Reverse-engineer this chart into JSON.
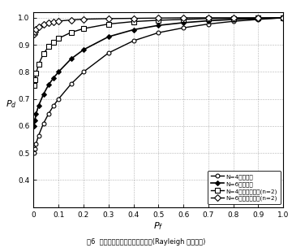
{
  "xlabel": "$P_f$",
  "ylabel": "$P_d$",
  "xlim": [
    0,
    1.0
  ],
  "ylim": [
    0.3,
    1.02
  ],
  "xticks": [
    0,
    0.1,
    0.2,
    0.3,
    0.4,
    0.5,
    0.6,
    0.7,
    0.8,
    0.9,
    1.0
  ],
  "yticks": [
    0.4,
    0.5,
    0.6,
    0.7,
    0.8,
    0.9,
    1.0
  ],
  "caption": "图6  合作感知和加权合作感知对比(Rayleigh 衰落环境)",
  "legend": [
    "N=4合作感知",
    "N=6合作感知",
    "N=4加权合作感知(n=2)",
    "N=6加权合作感知(n=2)"
  ],
  "N4_coop_pf": [
    0.001,
    0.005,
    0.01,
    0.02,
    0.04,
    0.06,
    0.08,
    0.1,
    0.15,
    0.2,
    0.3,
    0.4,
    0.5,
    0.6,
    0.7,
    0.8,
    0.9,
    1.0
  ],
  "N4_coop_pd": [
    0.5,
    0.515,
    0.535,
    0.565,
    0.61,
    0.645,
    0.675,
    0.7,
    0.755,
    0.8,
    0.87,
    0.915,
    0.945,
    0.963,
    0.977,
    0.987,
    0.994,
    1.0
  ],
  "N6_coop_pf": [
    0.001,
    0.005,
    0.01,
    0.02,
    0.04,
    0.06,
    0.08,
    0.1,
    0.15,
    0.2,
    0.3,
    0.4,
    0.5,
    0.6,
    0.7,
    0.8,
    0.9,
    1.0
  ],
  "N6_coop_pd": [
    0.6,
    0.62,
    0.645,
    0.675,
    0.718,
    0.752,
    0.778,
    0.8,
    0.848,
    0.882,
    0.93,
    0.956,
    0.972,
    0.982,
    0.989,
    0.994,
    0.997,
    1.0
  ],
  "N4_weighted_pf": [
    0.001,
    0.005,
    0.01,
    0.02,
    0.04,
    0.06,
    0.08,
    0.1,
    0.15,
    0.2,
    0.3,
    0.4,
    0.5,
    0.6,
    0.7,
    0.8,
    0.9,
    1.0
  ],
  "N4_weighted_pd": [
    0.75,
    0.77,
    0.795,
    0.828,
    0.868,
    0.893,
    0.91,
    0.924,
    0.946,
    0.96,
    0.977,
    0.986,
    0.991,
    0.994,
    0.997,
    0.998,
    0.999,
    1.0
  ],
  "N6_weighted_pf": [
    0.001,
    0.005,
    0.01,
    0.02,
    0.04,
    0.06,
    0.08,
    0.1,
    0.15,
    0.2,
    0.3,
    0.4,
    0.5,
    0.6,
    0.7,
    0.8,
    0.9,
    1.0
  ],
  "N6_weighted_pd": [
    0.94,
    0.95,
    0.958,
    0.966,
    0.975,
    0.981,
    0.985,
    0.988,
    0.992,
    0.995,
    0.997,
    0.998,
    0.999,
    1.0,
    1.0,
    1.0,
    1.0,
    1.0
  ]
}
